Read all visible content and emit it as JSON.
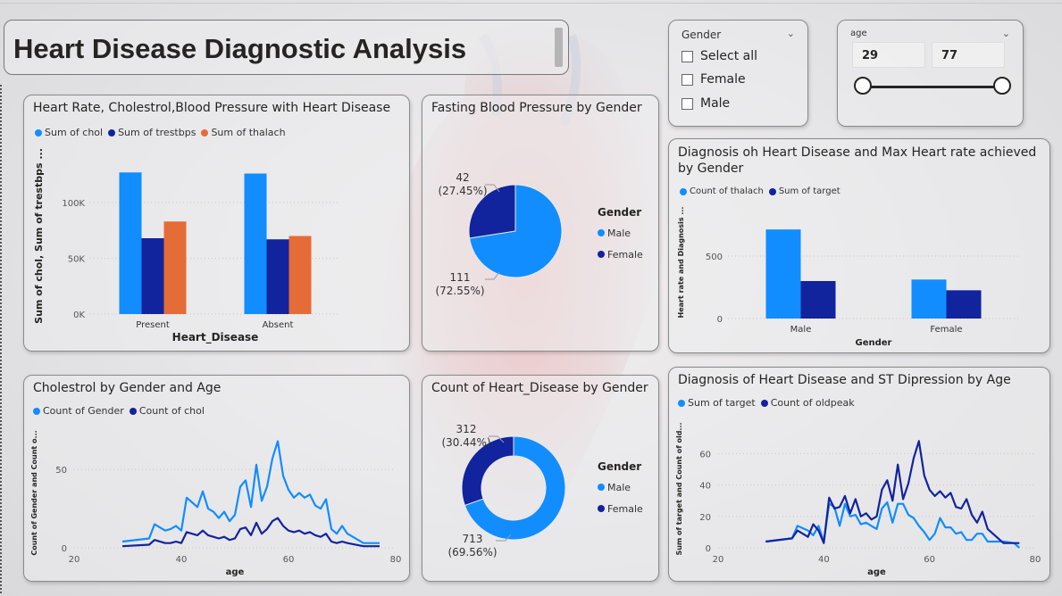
{
  "title": "Heart Disease Diagnostic Analysis",
  "colors": {
    "light_blue": "#118dff",
    "dark_blue": "#12239e",
    "orange": "#e66c37"
  },
  "slicers": {
    "gender": {
      "title": "Gender",
      "options": [
        "Select all",
        "Female",
        "Male"
      ]
    },
    "age": {
      "title": "age",
      "min": "29",
      "max": "77"
    }
  },
  "chart_data": [
    {
      "id": "bar1",
      "type": "bar",
      "title": "Heart Rate, Cholestrol,Blood Pressure with Heart Disease",
      "xlabel": "Heart_Disease",
      "ylabel": "Sum of chol, Sum of trestbps ...",
      "categories": [
        "Present",
        "Absent"
      ],
      "ylim": [
        0,
        140000
      ],
      "yticks": [
        0,
        50000,
        100000
      ],
      "ytick_labels": [
        "0K",
        "50K",
        "100K"
      ],
      "series": [
        {
          "name": "Sum of chol",
          "values": [
            127000,
            126000
          ]
        },
        {
          "name": "Sum of trestbps",
          "values": [
            68000,
            67000
          ]
        },
        {
          "name": "Sum of thalach",
          "values": [
            83000,
            70000
          ]
        }
      ]
    },
    {
      "id": "pie1",
      "type": "pie",
      "title": "Fasting Blood Pressure by Gender",
      "legend_title": "Gender",
      "labels": [
        "Male",
        "Female"
      ],
      "values": [
        111,
        42
      ],
      "value_labels": [
        "111",
        "42"
      ],
      "pct_labels": [
        "(72.55%)",
        "(27.45%)"
      ]
    },
    {
      "id": "bar2",
      "type": "bar",
      "title": "Diagnosis oh Heart Disease and Max Heart rate achieved by Gender",
      "title_lines": [
        "Diagnosis oh Heart Disease and Max Heart rate achieved",
        "by Gender"
      ],
      "xlabel": "Gender",
      "ylabel": "Heart rate and Diagnosis ...",
      "categories": [
        "Male",
        "Female"
      ],
      "ylim": [
        0,
        900
      ],
      "yticks": [
        0,
        500
      ],
      "ytick_labels": [
        "0",
        "500"
      ],
      "series": [
        {
          "name": "Count of thalach",
          "values": [
            713,
            312
          ]
        },
        {
          "name": "Sum of target",
          "values": [
            300,
            226
          ]
        }
      ]
    },
    {
      "id": "line1",
      "type": "line",
      "title": "Cholestrol by Gender and Age",
      "xlabel": "age",
      "ylabel": "Count of Gender and Count o...",
      "xlim": [
        20,
        80
      ],
      "ylim": [
        0,
        70
      ],
      "xticks": [
        20,
        40,
        60,
        80
      ],
      "yticks": [
        0,
        50
      ],
      "x": [
        29,
        34,
        35,
        37,
        38,
        39,
        40,
        41,
        42,
        43,
        44,
        45,
        46,
        47,
        48,
        49,
        50,
        51,
        52,
        53,
        54,
        55,
        56,
        57,
        58,
        59,
        60,
        61,
        62,
        63,
        64,
        65,
        66,
        67,
        68,
        69,
        70,
        71,
        74,
        76,
        77
      ],
      "series": [
        {
          "name": "Count of Gender",
          "values": [
            4,
            6,
            15,
            11,
            12,
            14,
            11,
            32,
            29,
            26,
            36,
            25,
            23,
            19,
            23,
            17,
            21,
            39,
            43,
            26,
            53,
            30,
            39,
            57,
            68,
            46,
            37,
            32,
            35,
            32,
            34,
            27,
            25,
            31,
            12,
            9,
            14,
            9,
            3,
            3,
            3
          ]
        },
        {
          "name": "Count of chol",
          "values": [
            1,
            2,
            5,
            3,
            3,
            4,
            3,
            10,
            9,
            8,
            11,
            8,
            7,
            6,
            7,
            5,
            6,
            12,
            13,
            8,
            16,
            9,
            12,
            17,
            19,
            14,
            11,
            10,
            11,
            9,
            10,
            8,
            7,
            9,
            4,
            3,
            4,
            3,
            1,
            1,
            1
          ]
        }
      ]
    },
    {
      "id": "donut1",
      "type": "pie",
      "title": "Count of Heart_Disease by Gender",
      "legend_title": "Gender",
      "labels": [
        "Male",
        "Female"
      ],
      "values": [
        713,
        312
      ],
      "value_labels": [
        "713",
        "312"
      ],
      "pct_labels": [
        "(69.56%)",
        "(30.44%)"
      ]
    },
    {
      "id": "line2",
      "type": "line",
      "title": "Diagnosis of Heart Disease and ST Dipression by Age",
      "xlabel": "age",
      "ylabel": "Sum of target and Count of old...",
      "xlim": [
        20,
        80
      ],
      "ylim": [
        0,
        75
      ],
      "xticks": [
        20,
        40,
        60,
        80
      ],
      "yticks": [
        0,
        20,
        40,
        60
      ],
      "x": [
        29,
        34,
        35,
        37,
        38,
        39,
        40,
        41,
        42,
        43,
        44,
        45,
        46,
        47,
        48,
        49,
        50,
        51,
        52,
        53,
        54,
        55,
        56,
        57,
        58,
        59,
        60,
        61,
        62,
        63,
        64,
        65,
        66,
        67,
        68,
        69,
        70,
        71,
        74,
        76,
        77
      ],
      "series": [
        {
          "name": "Sum of target",
          "values": [
            4,
            6,
            14,
            11,
            8,
            14,
            4,
            28,
            26,
            14,
            28,
            20,
            21,
            15,
            16,
            14,
            12,
            25,
            29,
            16,
            28,
            28,
            21,
            19,
            14,
            10,
            5,
            9,
            19,
            13,
            13,
            9,
            10,
            5,
            5,
            9,
            9,
            4,
            4,
            3,
            0
          ]
        },
        {
          "name": "Count of oldpeak",
          "values": [
            4,
            6,
            11,
            7,
            15,
            11,
            3,
            32,
            25,
            26,
            33,
            22,
            31,
            20,
            22,
            18,
            20,
            37,
            43,
            30,
            53,
            31,
            41,
            57,
            68,
            46,
            37,
            33,
            36,
            32,
            35,
            26,
            25,
            31,
            21,
            16,
            23,
            12,
            3,
            3,
            3
          ]
        }
      ]
    }
  ]
}
